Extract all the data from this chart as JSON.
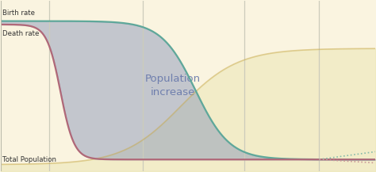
{
  "bg_fill": "#faf4e0",
  "x_min": 0,
  "x_max": 10,
  "y_min": 0,
  "y_max": 1.0,
  "vertical_lines": [
    1.3,
    3.8,
    6.5,
    8.5
  ],
  "birth_rate_color": "#5fa89a",
  "death_rate_color": "#b06878",
  "population_line_color": "#c8a84a",
  "population_fill_color": "#ede8b8",
  "fill_between_color": "#8090b8",
  "fill_between_alpha": 0.45,
  "population_fill_alpha": 0.6,
  "label_birth": "Birth rate",
  "label_death": "Death rate",
  "label_population": "Total Population",
  "label_pop_increase": "Population\nincrease",
  "dotted_color_birth": "#88bbaa",
  "dotted_color_death": "#cc9999",
  "vline_color": "#ccccbb",
  "vline_lw": 0.9
}
